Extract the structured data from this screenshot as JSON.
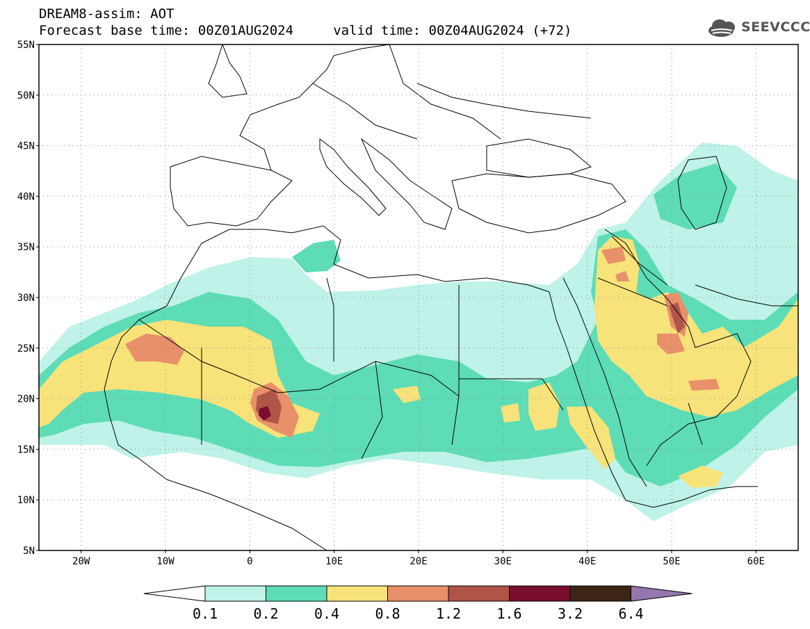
{
  "header": {
    "line1": "DREAM8-assim: AOT",
    "line2": "Forecast base time: 00Z01AUG2024     valid time: 00Z04AUG2024 (+72)"
  },
  "logo": {
    "text": "SEEVCCC",
    "icon": "cloud-logo-icon"
  },
  "map": {
    "lon_range": [
      -25,
      65
    ],
    "lat_range": [
      5,
      55
    ],
    "lat_ticks": [
      {
        "value": 55,
        "label": "55N"
      },
      {
        "value": 50,
        "label": "50N"
      },
      {
        "value": 45,
        "label": "45N"
      },
      {
        "value": 40,
        "label": "40N"
      },
      {
        "value": 35,
        "label": "35N"
      },
      {
        "value": 30,
        "label": "30N"
      },
      {
        "value": 25,
        "label": "25N"
      },
      {
        "value": 20,
        "label": "20N"
      },
      {
        "value": 15,
        "label": "15N"
      },
      {
        "value": 10,
        "label": "10N"
      },
      {
        "value": 5,
        "label": "5N"
      }
    ],
    "lon_ticks": [
      {
        "value": -20,
        "label": "20W"
      },
      {
        "value": -10,
        "label": "10W"
      },
      {
        "value": 0,
        "label": "0"
      },
      {
        "value": 10,
        "label": "10E"
      },
      {
        "value": 20,
        "label": "20E"
      },
      {
        "value": 30,
        "label": "30E"
      },
      {
        "value": 40,
        "label": "40E"
      },
      {
        "value": 50,
        "label": "50E"
      },
      {
        "value": 60,
        "label": "60E"
      }
    ]
  },
  "colorbar": {
    "labels": [
      "0.1",
      "0.2",
      "0.4",
      "0.8",
      "1.2",
      "1.6",
      "3.2",
      "6.4"
    ],
    "colors": {
      "under": "#ffffff",
      "c1": "#bff2e8",
      "c2": "#5ddcb6",
      "c3": "#f7e37a",
      "c4": "#e8906a",
      "c5": "#b05448",
      "c6": "#7a0e2e",
      "c7": "#3e2416",
      "over": "#9577ad"
    }
  }
}
